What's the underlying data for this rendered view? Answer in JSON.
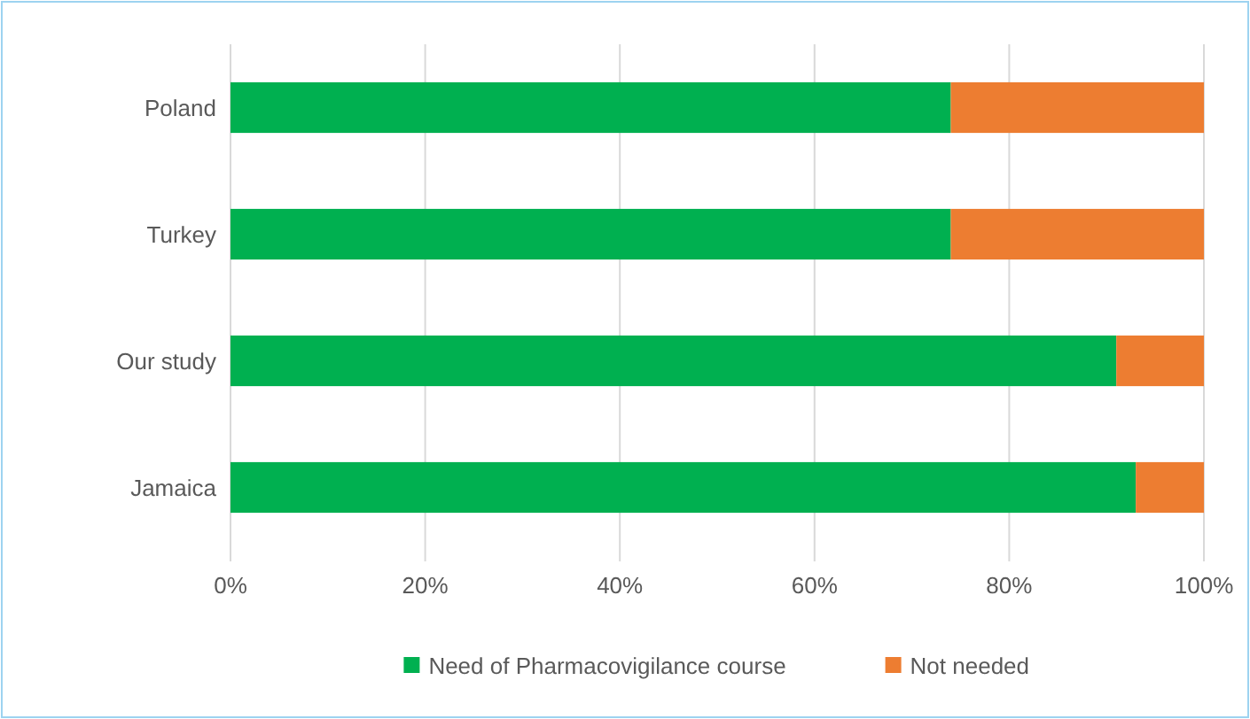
{
  "chart_data": {
    "type": "bar",
    "orientation": "horizontal",
    "stacked": true,
    "categories": [
      "Poland",
      "Turkey",
      "Our study",
      "Jamaica"
    ],
    "series": [
      {
        "name": "Need of Pharmacovigilance course",
        "color": "#00b050",
        "values": [
          74,
          74,
          91,
          93
        ]
      },
      {
        "name": "Not needed",
        "color": "#ed7d31",
        "values": [
          26,
          26,
          9,
          7
        ]
      }
    ],
    "xlim": [
      0,
      100
    ],
    "xticks": [
      {
        "value": 0,
        "label": "0%"
      },
      {
        "value": 20,
        "label": "20%"
      },
      {
        "value": 40,
        "label": "40%"
      },
      {
        "value": 60,
        "label": "60%"
      },
      {
        "value": 80,
        "label": "80%"
      },
      {
        "value": 100,
        "label": "100%"
      }
    ],
    "grid": "x",
    "legend": "bottom"
  }
}
